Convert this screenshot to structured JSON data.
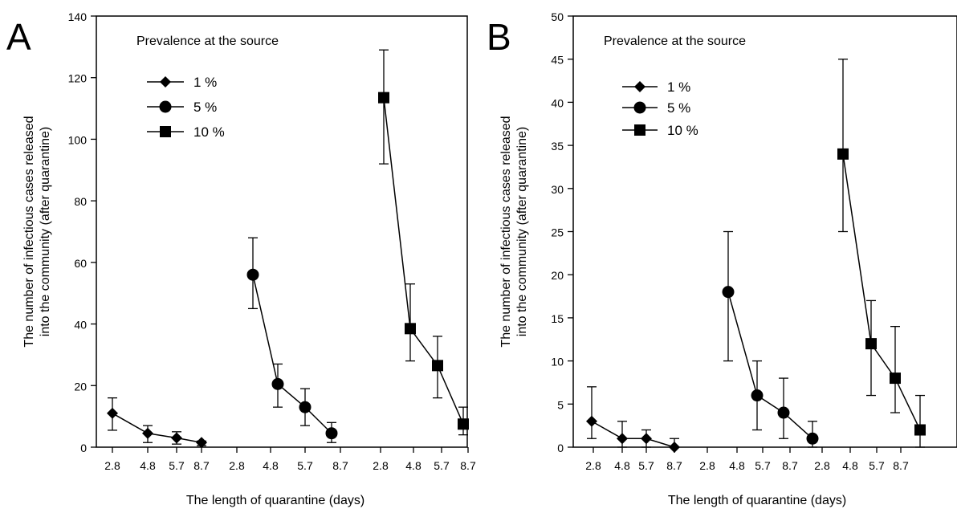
{
  "chart_data": [
    {
      "panel": "A",
      "type": "line",
      "title": "",
      "xlabel": "The length of quarantine (days)",
      "ylabel_lines": [
        "The number of infectious cases released",
        "into the community (after quarantine)"
      ],
      "ylim": [
        0,
        140
      ],
      "yticks": [
        0,
        20,
        40,
        60,
        80,
        100,
        120,
        140
      ],
      "grid": false,
      "legend": {
        "title": "Prevalence at the source",
        "placement": "top-left"
      },
      "x": [
        "2.8",
        "4.8",
        "5.7",
        "8.7"
      ],
      "series": [
        {
          "name": "1   %",
          "marker": "diamond",
          "values": [
            11,
            4.5,
            3,
            1.5
          ],
          "err_low": [
            5.5,
            1.5,
            1,
            0.5
          ],
          "err_high": [
            16,
            7,
            5,
            2
          ]
        },
        {
          "name": "5   %",
          "marker": "circle",
          "values": [
            56,
            20.5,
            13,
            4.5
          ],
          "err_low": [
            45,
            13,
            7,
            1.5
          ],
          "err_high": [
            68,
            27,
            19,
            8
          ]
        },
        {
          "name": "10 %",
          "marker": "square",
          "values": [
            113.5,
            38.5,
            26.5,
            7.5
          ],
          "err_low": [
            92,
            28,
            16,
            4
          ],
          "err_high": [
            129,
            53,
            36,
            13
          ]
        }
      ]
    },
    {
      "panel": "B",
      "type": "line",
      "title": "",
      "xlabel": "The length of quarantine (days)",
      "ylabel_lines": [
        "The number of infectious cases released",
        "into the community (after quarantine)"
      ],
      "ylim": [
        0,
        50
      ],
      "yticks": [
        0,
        5,
        10,
        15,
        20,
        25,
        30,
        35,
        40,
        45,
        50
      ],
      "grid": false,
      "legend": {
        "title": "Prevalence at the source",
        "placement": "top-left"
      },
      "x": [
        "2.8",
        "4.8",
        "5.7",
        "8.7"
      ],
      "series": [
        {
          "name": "1   %",
          "marker": "diamond",
          "values": [
            3,
            1,
            1,
            0
          ],
          "err_low": [
            1,
            0,
            0,
            0
          ],
          "err_high": [
            7,
            3,
            2,
            1
          ]
        },
        {
          "name": "5   %",
          "marker": "circle",
          "values": [
            18,
            6,
            4,
            1
          ],
          "err_low": [
            10,
            2,
            1,
            0
          ],
          "err_high": [
            25,
            10,
            8,
            3
          ]
        },
        {
          "name": "10 %",
          "marker": "square",
          "values": [
            34,
            12,
            8,
            2
          ],
          "err_low": [
            25,
            6,
            4,
            0
          ],
          "err_high": [
            45,
            17,
            14,
            6
          ]
        }
      ]
    }
  ]
}
